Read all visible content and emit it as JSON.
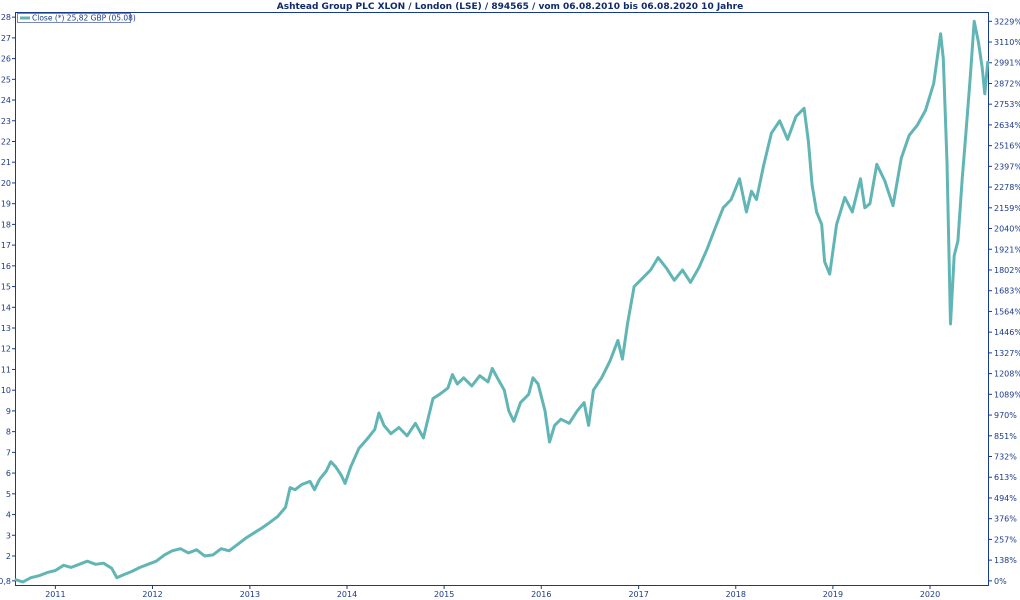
{
  "chart_data": {
    "type": "line",
    "title": "Ashtead Group PLC XLON / London (LSE) / 894565 / vom 06.08.2010 bis 06.08.2020 10 Jahre",
    "legend": {
      "label": "Close (*) 25,82 GBP (05.08)",
      "placement": "top-left"
    },
    "x_range": [
      "2010-08-06",
      "2020-08-06"
    ],
    "x_ticks": [
      {
        "date": "2011-01-01",
        "label": "2011"
      },
      {
        "date": "2012-01-01",
        "label": "2012"
      },
      {
        "date": "2013-01-01",
        "label": "2013"
      },
      {
        "date": "2014-01-01",
        "label": "2014"
      },
      {
        "date": "2015-01-01",
        "label": "2015"
      },
      {
        "date": "2016-01-01",
        "label": "2016"
      },
      {
        "date": "2017-01-01",
        "label": "2017"
      },
      {
        "date": "2018-01-01",
        "label": "2018"
      },
      {
        "date": "2019-01-01",
        "label": "2019"
      },
      {
        "date": "2020-01-01",
        "label": "2020"
      }
    ],
    "ylim": [
      0.6,
      28.2
    ],
    "y_ticks_left": [
      {
        "value": 0.8,
        "label": "0,8"
      },
      {
        "value": 2,
        "label": "2"
      },
      {
        "value": 3,
        "label": "3"
      },
      {
        "value": 4,
        "label": "4"
      },
      {
        "value": 5,
        "label": "5"
      },
      {
        "value": 6,
        "label": "6"
      },
      {
        "value": 7,
        "label": "7"
      },
      {
        "value": 8,
        "label": "8"
      },
      {
        "value": 9,
        "label": "9"
      },
      {
        "value": 10,
        "label": "10"
      },
      {
        "value": 11,
        "label": "11"
      },
      {
        "value": 12,
        "label": "12"
      },
      {
        "value": 13,
        "label": "13"
      },
      {
        "value": 14,
        "label": "14"
      },
      {
        "value": 15,
        "label": "15"
      },
      {
        "value": 16,
        "label": "16"
      },
      {
        "value": 17,
        "label": "17"
      },
      {
        "value": 18,
        "label": "18"
      },
      {
        "value": 19,
        "label": "19"
      },
      {
        "value": 20,
        "label": "20"
      },
      {
        "value": 21,
        "label": "21"
      },
      {
        "value": 22,
        "label": "22"
      },
      {
        "value": 23,
        "label": "23"
      },
      {
        "value": 24,
        "label": "24"
      },
      {
        "value": 25,
        "label": "25"
      },
      {
        "value": 26,
        "label": "26"
      },
      {
        "value": 27,
        "label": "27"
      },
      {
        "value": 28,
        "label": "28"
      }
    ],
    "y_ticks_right": [
      {
        "value": 0.8,
        "label": "0%"
      },
      {
        "value": 1.8,
        "label": "138%"
      },
      {
        "value": 2.8,
        "label": "257%"
      },
      {
        "value": 3.8,
        "label": "376%"
      },
      {
        "value": 4.8,
        "label": "494%"
      },
      {
        "value": 5.8,
        "label": "613%"
      },
      {
        "value": 6.8,
        "label": "732%"
      },
      {
        "value": 7.8,
        "label": "851%"
      },
      {
        "value": 8.8,
        "label": "970%"
      },
      {
        "value": 9.8,
        "label": "1089%"
      },
      {
        "value": 10.8,
        "label": "1208%"
      },
      {
        "value": 11.8,
        "label": "1327%"
      },
      {
        "value": 12.8,
        "label": "1446%"
      },
      {
        "value": 13.8,
        "label": "1564%"
      },
      {
        "value": 14.8,
        "label": "1683%"
      },
      {
        "value": 15.8,
        "label": "1802%"
      },
      {
        "value": 16.8,
        "label": "1921%"
      },
      {
        "value": 17.8,
        "label": "2040%"
      },
      {
        "value": 18.8,
        "label": "2159%"
      },
      {
        "value": 19.8,
        "label": "2278%"
      },
      {
        "value": 20.8,
        "label": "2397%"
      },
      {
        "value": 21.8,
        "label": "2516%"
      },
      {
        "value": 22.8,
        "label": "2634%"
      },
      {
        "value": 23.8,
        "label": "2753%"
      },
      {
        "value": 24.8,
        "label": "2872%"
      },
      {
        "value": 25.8,
        "label": "2991%"
      },
      {
        "value": 26.8,
        "label": "3110%"
      },
      {
        "value": 27.8,
        "label": "3229%"
      }
    ],
    "grid": false,
    "colors": {
      "line": "#62b5b5",
      "axis": "#1a3a8a",
      "title": "#0f2a6b"
    },
    "series": [
      {
        "name": "Close (*)",
        "points": [
          [
            "2010-08-06",
            0.85
          ],
          [
            "2010-09-01",
            0.75
          ],
          [
            "2010-10-01",
            0.95
          ],
          [
            "2010-11-01",
            1.05
          ],
          [
            "2010-12-01",
            1.2
          ],
          [
            "2011-01-01",
            1.3
          ],
          [
            "2011-02-01",
            1.55
          ],
          [
            "2011-03-01",
            1.45
          ],
          [
            "2011-04-01",
            1.6
          ],
          [
            "2011-05-01",
            1.75
          ],
          [
            "2011-06-01",
            1.6
          ],
          [
            "2011-07-01",
            1.65
          ],
          [
            "2011-08-01",
            1.4
          ],
          [
            "2011-08-20",
            0.95
          ],
          [
            "2011-09-15",
            1.1
          ],
          [
            "2011-10-15",
            1.25
          ],
          [
            "2011-11-15",
            1.45
          ],
          [
            "2011-12-15",
            1.6
          ],
          [
            "2012-01-15",
            1.75
          ],
          [
            "2012-02-15",
            2.05
          ],
          [
            "2012-03-15",
            2.25
          ],
          [
            "2012-04-15",
            2.35
          ],
          [
            "2012-05-15",
            2.15
          ],
          [
            "2012-06-15",
            2.3
          ],
          [
            "2012-07-15",
            2.0
          ],
          [
            "2012-08-15",
            2.05
          ],
          [
            "2012-09-15",
            2.35
          ],
          [
            "2012-10-15",
            2.25
          ],
          [
            "2012-11-15",
            2.55
          ],
          [
            "2012-12-15",
            2.85
          ],
          [
            "2013-01-15",
            3.1
          ],
          [
            "2013-02-15",
            3.35
          ],
          [
            "2013-03-15",
            3.6
          ],
          [
            "2013-04-15",
            3.9
          ],
          [
            "2013-05-15",
            4.35
          ],
          [
            "2013-06-01",
            5.3
          ],
          [
            "2013-06-20",
            5.2
          ],
          [
            "2013-07-15",
            5.45
          ],
          [
            "2013-08-15",
            5.6
          ],
          [
            "2013-09-01",
            5.2
          ],
          [
            "2013-09-20",
            5.7
          ],
          [
            "2013-10-15",
            6.1
          ],
          [
            "2013-11-01",
            6.55
          ],
          [
            "2013-11-20",
            6.3
          ],
          [
            "2013-12-10",
            5.9
          ],
          [
            "2013-12-25",
            5.5
          ],
          [
            "2014-01-15",
            6.3
          ],
          [
            "2014-02-15",
            7.2
          ],
          [
            "2014-03-15",
            7.6
          ],
          [
            "2014-04-15",
            8.1
          ],
          [
            "2014-05-01",
            8.9
          ],
          [
            "2014-05-20",
            8.3
          ],
          [
            "2014-06-15",
            7.9
          ],
          [
            "2014-07-15",
            8.2
          ],
          [
            "2014-08-15",
            7.8
          ],
          [
            "2014-09-15",
            8.4
          ],
          [
            "2014-10-15",
            7.7
          ],
          [
            "2014-11-01",
            8.6
          ],
          [
            "2014-11-20",
            9.6
          ],
          [
            "2014-12-15",
            9.8
          ],
          [
            "2015-01-15",
            10.1
          ],
          [
            "2015-02-01",
            10.75
          ],
          [
            "2015-02-20",
            10.3
          ],
          [
            "2015-03-15",
            10.6
          ],
          [
            "2015-04-15",
            10.2
          ],
          [
            "2015-05-15",
            10.7
          ],
          [
            "2015-06-15",
            10.4
          ],
          [
            "2015-07-01",
            11.05
          ],
          [
            "2015-07-20",
            10.6
          ],
          [
            "2015-08-15",
            10.0
          ],
          [
            "2015-09-01",
            9.0
          ],
          [
            "2015-09-20",
            8.5
          ],
          [
            "2015-10-15",
            9.4
          ],
          [
            "2015-11-15",
            9.8
          ],
          [
            "2015-12-01",
            10.6
          ],
          [
            "2015-12-20",
            10.3
          ],
          [
            "2016-01-15",
            9.0
          ],
          [
            "2016-02-01",
            7.5
          ],
          [
            "2016-02-20",
            8.3
          ],
          [
            "2016-03-15",
            8.6
          ],
          [
            "2016-04-15",
            8.4
          ],
          [
            "2016-05-15",
            9.0
          ],
          [
            "2016-06-10",
            9.4
          ],
          [
            "2016-06-27",
            8.3
          ],
          [
            "2016-07-15",
            10.0
          ],
          [
            "2016-08-15",
            10.6
          ],
          [
            "2016-09-15",
            11.4
          ],
          [
            "2016-10-15",
            12.4
          ],
          [
            "2016-11-01",
            11.5
          ],
          [
            "2016-11-20",
            13.2
          ],
          [
            "2016-12-15",
            15.0
          ],
          [
            "2017-01-15",
            15.4
          ],
          [
            "2017-02-15",
            15.8
          ],
          [
            "2017-03-15",
            16.4
          ],
          [
            "2017-04-15",
            15.9
          ],
          [
            "2017-05-15",
            15.3
          ],
          [
            "2017-06-15",
            15.8
          ],
          [
            "2017-07-15",
            15.2
          ],
          [
            "2017-08-15",
            15.9
          ],
          [
            "2017-09-15",
            16.8
          ],
          [
            "2017-10-15",
            17.8
          ],
          [
            "2017-11-15",
            18.8
          ],
          [
            "2017-12-15",
            19.2
          ],
          [
            "2018-01-15",
            20.2
          ],
          [
            "2018-02-10",
            18.6
          ],
          [
            "2018-03-01",
            19.6
          ],
          [
            "2018-03-20",
            19.2
          ],
          [
            "2018-04-15",
            20.8
          ],
          [
            "2018-05-15",
            22.4
          ],
          [
            "2018-06-15",
            23.0
          ],
          [
            "2018-07-15",
            22.1
          ],
          [
            "2018-08-15",
            23.2
          ],
          [
            "2018-09-15",
            23.6
          ],
          [
            "2018-10-01",
            22.0
          ],
          [
            "2018-10-15",
            19.9
          ],
          [
            "2018-11-01",
            18.6
          ],
          [
            "2018-11-20",
            18.0
          ],
          [
            "2018-12-01",
            16.2
          ],
          [
            "2018-12-20",
            15.6
          ],
          [
            "2019-01-15",
            18.0
          ],
          [
            "2019-02-15",
            19.3
          ],
          [
            "2019-03-15",
            18.6
          ],
          [
            "2019-04-15",
            20.2
          ],
          [
            "2019-05-01",
            18.8
          ],
          [
            "2019-05-20",
            19.0
          ],
          [
            "2019-06-15",
            20.9
          ],
          [
            "2019-07-15",
            20.1
          ],
          [
            "2019-08-15",
            18.9
          ],
          [
            "2019-09-15",
            21.2
          ],
          [
            "2019-10-15",
            22.3
          ],
          [
            "2019-11-15",
            22.8
          ],
          [
            "2019-12-15",
            23.5
          ],
          [
            "2020-01-15",
            24.8
          ],
          [
            "2020-02-10",
            27.2
          ],
          [
            "2020-02-20",
            26.0
          ],
          [
            "2020-03-05",
            21.0
          ],
          [
            "2020-03-18",
            13.2
          ],
          [
            "2020-04-01",
            16.5
          ],
          [
            "2020-04-15",
            17.2
          ],
          [
            "2020-05-01",
            20.2
          ],
          [
            "2020-05-15",
            22.4
          ],
          [
            "2020-06-01",
            25.2
          ],
          [
            "2020-06-15",
            27.8
          ],
          [
            "2020-07-01",
            26.8
          ],
          [
            "2020-07-15",
            25.6
          ],
          [
            "2020-07-25",
            24.3
          ],
          [
            "2020-08-05",
            25.82
          ]
        ]
      }
    ]
  }
}
